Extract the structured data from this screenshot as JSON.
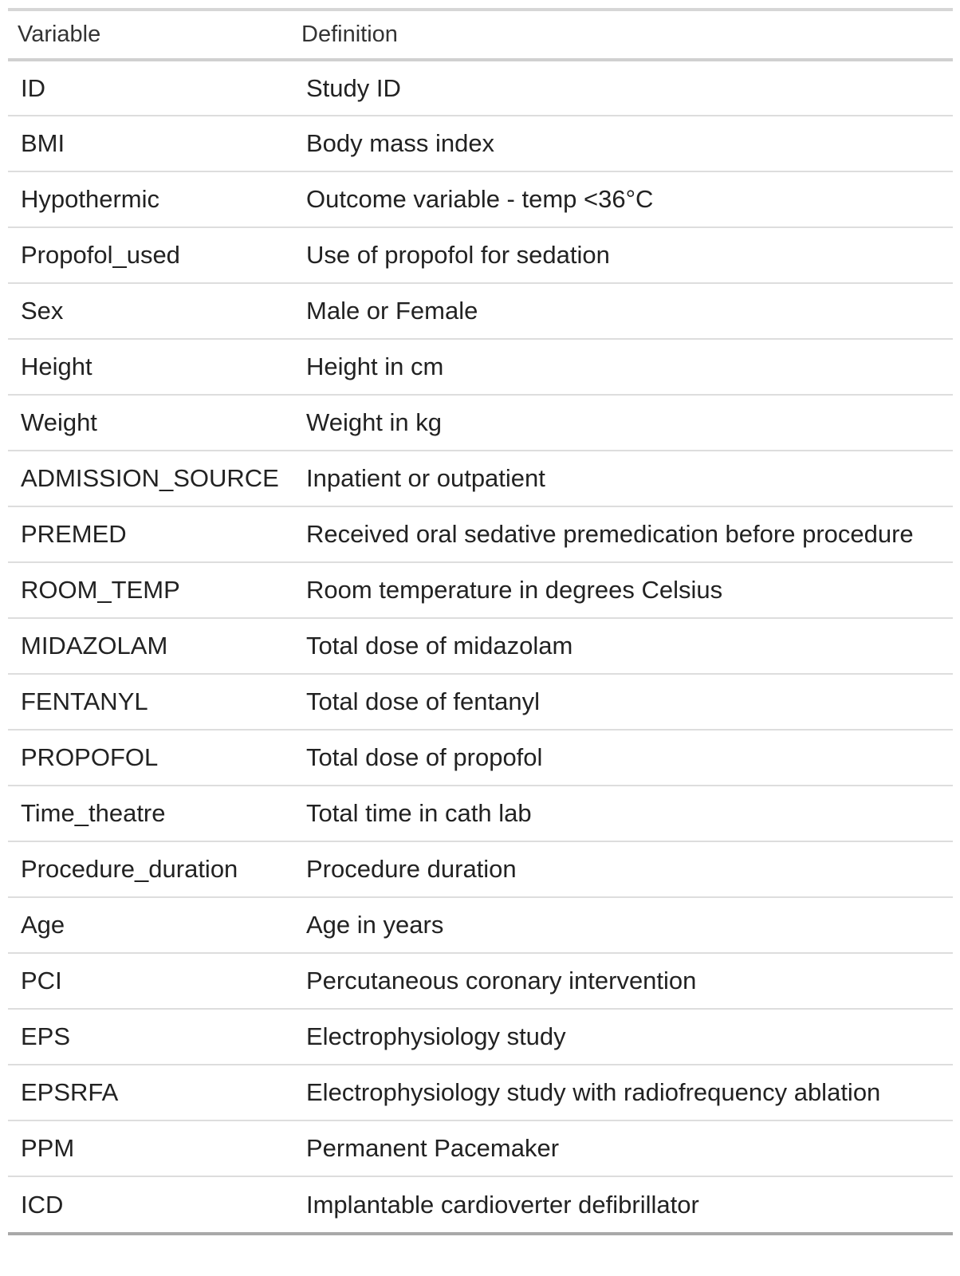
{
  "table": {
    "headers": [
      "Variable",
      "Definition"
    ],
    "rows": [
      {
        "variable": "ID",
        "definition": "Study ID"
      },
      {
        "variable": "BMI",
        "definition": "Body mass index"
      },
      {
        "variable": "Hypothermic",
        "definition": "Outcome variable - temp <36°C"
      },
      {
        "variable": "Propofol_used",
        "definition": "Use of propofol for sedation"
      },
      {
        "variable": "Sex",
        "definition": "Male or Female"
      },
      {
        "variable": "Height",
        "definition": "Height in cm"
      },
      {
        "variable": "Weight",
        "definition": "Weight in kg"
      },
      {
        "variable": "ADMISSION_SOURCE",
        "definition": "Inpatient or outpatient"
      },
      {
        "variable": "PREMED",
        "definition": "Received oral sedative premedication before procedure"
      },
      {
        "variable": "ROOM_TEMP",
        "definition": "Room temperature in degrees Celsius"
      },
      {
        "variable": "MIDAZOLAM",
        "definition": "Total dose of midazolam"
      },
      {
        "variable": "FENTANYL",
        "definition": "Total dose of fentanyl"
      },
      {
        "variable": "PROPOFOL",
        "definition": "Total dose of propofol"
      },
      {
        "variable": "Time_theatre",
        "definition": "Total time in cath lab"
      },
      {
        "variable": "Procedure_duration",
        "definition": "Procedure duration"
      },
      {
        "variable": "Age",
        "definition": "Age in years"
      },
      {
        "variable": "PCI",
        "definition": "Percutaneous coronary intervention"
      },
      {
        "variable": "EPS",
        "definition": "Electrophysiology study"
      },
      {
        "variable": "EPSRFA",
        "definition": "Electrophysiology study with radiofrequency ablation"
      },
      {
        "variable": "PPM",
        "definition": "Permanent Pacemaker"
      },
      {
        "variable": "ICD",
        "definition": "Implantable cardioverter defibrillator"
      }
    ]
  }
}
